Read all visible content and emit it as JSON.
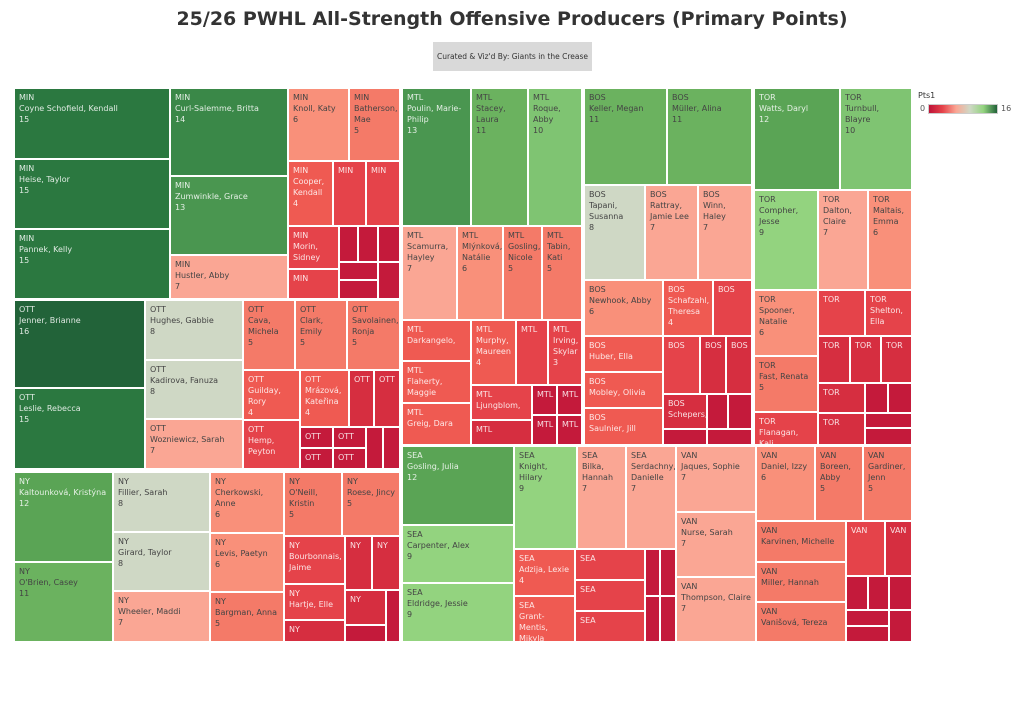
{
  "title": "25/26 PWHL All-Strength Offensive Producers (Primary Points)",
  "subtitle": "Curated & Viz'd By: Giants in the Crease",
  "legend": {
    "title": "Pts1",
    "min_label": "0",
    "max_label": "16",
    "colors": [
      "#be1238",
      "#e5434a",
      "#faa694",
      "#cfd8c5",
      "#93d37f",
      "#216238"
    ]
  },
  "chart_data": {
    "type": "treemap",
    "title": "25/26 PWHL All-Strength Offensive Producers (Primary Points)",
    "measure": "Pts1",
    "color_range": [
      0,
      16
    ],
    "teams": [
      {
        "code": "MIN",
        "players": [
          {
            "team_label": "MIN",
            "name": "Coyne Schofield, Kendall",
            "pts": 15,
            "pts_label": "15"
          },
          {
            "team_label": "MIN",
            "name": "Heise, Taylor",
            "pts": 15,
            "pts_label": "15"
          },
          {
            "team_label": "MIN",
            "name": "Pannek, Kelly",
            "pts": 15,
            "pts_label": "15"
          },
          {
            "team_label": "MIN",
            "name": "Curl-Salemme, Britta",
            "pts": 14,
            "pts_label": "14"
          },
          {
            "team_label": "MIN",
            "name": "Zumwinkle, Grace",
            "pts": 13,
            "pts_label": "13"
          },
          {
            "team_label": "MIN",
            "name": "Hustler, Abby",
            "pts": 7,
            "pts_label": "7"
          },
          {
            "team_label": "MIN",
            "name": "Knoll, Katy",
            "pts": 6,
            "pts_label": "6"
          },
          {
            "team_label": "MIN",
            "name": "Batherson, Mae",
            "pts": 5,
            "pts_label": "5"
          },
          {
            "team_label": "MIN",
            "name": "Cooper, Kendall",
            "pts": 4,
            "pts_label": "4"
          },
          {
            "team_label": "MIN",
            "pts": 3
          },
          {
            "team_label": "MIN",
            "pts": 3
          },
          {
            "team_label": "MIN",
            "name": "Morin, Sidney",
            "pts": 3
          },
          {
            "team_label": "MIN",
            "pts": 3
          },
          {
            "pts": 1
          },
          {
            "pts": 1
          },
          {
            "pts": 1
          },
          {
            "pts": 1
          },
          {
            "pts": 1
          },
          {
            "pts": 1
          }
        ]
      },
      {
        "code": "OTT",
        "players": [
          {
            "team_label": "OTT",
            "name": "Jenner, Brianne",
            "pts": 16,
            "pts_label": "16"
          },
          {
            "team_label": "OTT",
            "name": "Leslie, Rebecca",
            "pts": 15,
            "pts_label": "15"
          },
          {
            "team_label": "OTT",
            "name": "Hughes, Gabbie",
            "pts": 8,
            "pts_label": "8"
          },
          {
            "team_label": "OTT",
            "name": "Kadirova, Fanuza",
            "pts": 8,
            "pts_label": "8"
          },
          {
            "team_label": "OTT",
            "name": "Wozniewicz, Sarah",
            "pts": 7,
            "pts_label": "7"
          },
          {
            "team_label": "OTT",
            "name": "Cava, Michela",
            "pts": 5,
            "pts_label": "5"
          },
          {
            "team_label": "OTT",
            "name": "Clark, Emily",
            "pts": 5,
            "pts_label": "5"
          },
          {
            "team_label": "OTT",
            "name": "Savolainen, Ronja",
            "pts": 5,
            "pts_label": "5"
          },
          {
            "team_label": "OTT",
            "name": "Guilday, Rory",
            "pts": 4,
            "pts_label": "4"
          },
          {
            "team_label": "OTT",
            "name": "Mrázová, Kateřina",
            "pts": 4,
            "pts_label": "4"
          },
          {
            "team_label": "OTT",
            "pts": 2
          },
          {
            "team_label": "OTT",
            "pts": 2
          },
          {
            "team_label": "OTT",
            "name": "Hemp, Peyton",
            "pts": 3
          },
          {
            "team_label": "OTT",
            "pts": 1
          },
          {
            "team_label": "OTT",
            "pts": 1
          },
          {
            "team_label": "OTT",
            "pts": 1
          },
          {
            "team_label": "OTT",
            "pts": 1
          },
          {
            "pts": 1
          },
          {
            "pts": 1
          }
        ]
      },
      {
        "code": "NY",
        "players": [
          {
            "team_label": "NY",
            "name": "Kaltounková, Kristýna",
            "pts": 12,
            "pts_label": "12"
          },
          {
            "team_label": "NY",
            "name": "O'Brien, Casey",
            "pts": 11,
            "pts_label": "11"
          },
          {
            "team_label": "NY",
            "name": "Fillier, Sarah",
            "pts": 8,
            "pts_label": "8"
          },
          {
            "team_label": "NY",
            "name": "Girard, Taylor",
            "pts": 8,
            "pts_label": "8"
          },
          {
            "team_label": "NY",
            "name": "Wheeler, Maddi",
            "pts": 7,
            "pts_label": "7"
          },
          {
            "team_label": "NY",
            "name": "Cherkowski, Anne",
            "pts": 6,
            "pts_label": "6"
          },
          {
            "team_label": "NY",
            "name": "Levis, Paetyn",
            "pts": 6,
            "pts_label": "6"
          },
          {
            "team_label": "NY",
            "name": "Bargman, Anna",
            "pts": 5,
            "pts_label": "5"
          },
          {
            "team_label": "NY",
            "name": "O'Neill, Kristin",
            "pts": 5,
            "pts_label": "5"
          },
          {
            "team_label": "NY",
            "name": "Roese, Jincy",
            "pts": 5,
            "pts_label": "5"
          },
          {
            "team_label": "NY",
            "name": "Bourbonnais, Jaime",
            "pts": 3
          },
          {
            "team_label": "NY",
            "pts": 2
          },
          {
            "team_label": "NY",
            "pts": 2
          },
          {
            "team_label": "NY",
            "name": "Hartje, Elle",
            "pts": 3
          },
          {
            "team_label": "NY",
            "pts": 2
          },
          {
            "team_label": "NY",
            "pts": 2
          },
          {
            "pts": 1
          },
          {
            "pts": 1
          }
        ]
      },
      {
        "code": "MTL",
        "players": [
          {
            "team_label": "MTL",
            "name": "Poulin, Marie-Philip",
            "pts": 13,
            "pts_label": "13"
          },
          {
            "team_label": "MTL",
            "name": "Stacey, Laura",
            "pts": 11,
            "pts_label": "11"
          },
          {
            "team_label": "MTL",
            "name": "Roque, Abby",
            "pts": 10,
            "pts_label": "10"
          },
          {
            "team_label": "MTL",
            "name": "Scamurra, Hayley",
            "pts": 7,
            "pts_label": "7"
          },
          {
            "team_label": "MTL",
            "name": "Mlýnková, Natálie",
            "pts": 6,
            "pts_label": "6"
          },
          {
            "team_label": "MTL",
            "name": "Gosling, Nicole",
            "pts": 5,
            "pts_label": "5"
          },
          {
            "team_label": "MTL",
            "name": "Tabin, Kati",
            "pts": 5,
            "pts_label": "5"
          },
          {
            "team_label": "MTL",
            "name": "Darkangelo,",
            "pts": 4
          },
          {
            "team_label": "MTL",
            "name": "Flaherty, Maggie",
            "pts": 4
          },
          {
            "team_label": "MTL",
            "name": "Greig, Dara",
            "pts": 4
          },
          {
            "team_label": "MTL",
            "name": "Murphy, Maureen",
            "pts": 4,
            "pts_label": "4"
          },
          {
            "team_label": "MTL",
            "pts": 3
          },
          {
            "team_label": "MTL",
            "name": "Irving, Skylar",
            "pts": 3,
            "pts_label": "3"
          },
          {
            "team_label": "MTL",
            "name": "Ljungblom,",
            "pts": 3
          },
          {
            "team_label": "MTL",
            "pts": 2
          },
          {
            "team_label": "MTL",
            "pts": 1
          },
          {
            "team_label": "MTL",
            "pts": 1
          },
          {
            "team_label": "MTL",
            "pts": 1
          },
          {
            "team_label": "MTL",
            "pts": 1
          }
        ]
      },
      {
        "code": "BOS",
        "players": [
          {
            "team_label": "BOS",
            "name": "Keller, Megan",
            "pts": 11,
            "pts_label": "11"
          },
          {
            "team_label": "BOS",
            "name": "Müller, Alina",
            "pts": 11,
            "pts_label": "11"
          },
          {
            "team_label": "BOS",
            "name": "Tapani, Susanna",
            "pts": 8,
            "pts_label": "8"
          },
          {
            "team_label": "BOS",
            "name": "Rattray, Jamie Lee",
            "pts": 7,
            "pts_label": "7"
          },
          {
            "team_label": "BOS",
            "name": "Winn, Haley",
            "pts": 7,
            "pts_label": "7"
          },
          {
            "team_label": "BOS",
            "name": "Newhook, Abby",
            "pts": 6,
            "pts_label": "6"
          },
          {
            "team_label": "BOS",
            "name": "Huber, Ella",
            "pts": 4
          },
          {
            "team_label": "BOS",
            "name": "Mobley, Olivia",
            "pts": 4
          },
          {
            "team_label": "BOS",
            "name": "Saulnier, Jill",
            "pts": 4
          },
          {
            "team_label": "BOS",
            "name": "Schafzahl, Theresa",
            "pts": 4,
            "pts_label": "4"
          },
          {
            "team_label": "BOS",
            "pts": 3
          },
          {
            "team_label": "BOS",
            "pts": 3
          },
          {
            "team_label": "BOS",
            "pts": 2
          },
          {
            "team_label": "BOS",
            "pts": 2
          },
          {
            "team_label": "BOS",
            "name": "Schepers,",
            "pts": 2
          },
          {
            "pts": 1
          },
          {
            "pts": 1
          },
          {
            "pts": 1
          },
          {
            "pts": 1
          }
        ]
      },
      {
        "code": "TOR",
        "players": [
          {
            "team_label": "TOR",
            "name": "Watts, Daryl",
            "pts": 12,
            "pts_label": "12"
          },
          {
            "team_label": "TOR",
            "name": "Turnbull, Blayre",
            "pts": 10,
            "pts_label": "10"
          },
          {
            "team_label": "TOR",
            "name": "Compher, Jesse",
            "pts": 9,
            "pts_label": "9"
          },
          {
            "team_label": "TOR",
            "name": "Dalton, Claire",
            "pts": 7,
            "pts_label": "7"
          },
          {
            "team_label": "TOR",
            "name": "Maltais, Emma",
            "pts": 6,
            "pts_label": "6"
          },
          {
            "team_label": "TOR",
            "name": "Spooner, Natalie",
            "pts": 6,
            "pts_label": "6"
          },
          {
            "team_label": "TOR",
            "name": "Fast, Renata",
            "pts": 5,
            "pts_label": "5"
          },
          {
            "team_label": "TOR",
            "name": "Flanagan, Kali",
            "pts": 3
          },
          {
            "team_label": "TOR",
            "pts": 3
          },
          {
            "team_label": "TOR",
            "name": "Shelton, Ella",
            "pts": 3
          },
          {
            "team_label": "TOR",
            "pts": 2
          },
          {
            "team_label": "TOR",
            "pts": 2
          },
          {
            "team_label": "TOR",
            "pts": 2
          },
          {
            "team_label": "TOR",
            "pts": 2
          },
          {
            "pts": 1
          },
          {
            "pts": 1
          },
          {
            "team_label": "TOR",
            "pts": 2
          },
          {
            "pts": 1
          },
          {
            "pts": 1
          }
        ]
      },
      {
        "code": "SEA",
        "players": [
          {
            "team_label": "SEA",
            "name": "Gosling, Julia",
            "pts": 12,
            "pts_label": "12"
          },
          {
            "team_label": "SEA",
            "name": "Carpenter, Alex",
            "pts": 9,
            "pts_label": "9"
          },
          {
            "team_label": "SEA",
            "name": "Eldridge, Jessie",
            "pts": 9,
            "pts_label": "9"
          },
          {
            "team_label": "SEA",
            "name": "Knight, Hilary",
            "pts": 9,
            "pts_label": "9"
          },
          {
            "team_label": "SEA",
            "name": "Bilka, Hannah",
            "pts": 7,
            "pts_label": "7"
          },
          {
            "team_label": "SEA",
            "name": "Serdachny, Danielle",
            "pts": 7,
            "pts_label": "7"
          },
          {
            "team_label": "SEA",
            "name": "Adzija, Lexie",
            "pts": 4,
            "pts_label": "4"
          },
          {
            "team_label": "SEA",
            "name": "Grant-Mentis, Mikyla",
            "pts": 4
          },
          {
            "team_label": "SEA",
            "pts": 3
          },
          {
            "team_label": "SEA",
            "pts": 3
          },
          {
            "team_label": "SEA",
            "pts": 3
          },
          {
            "pts": 1
          },
          {
            "pts": 1
          },
          {
            "pts": 1
          },
          {
            "pts": 1
          }
        ]
      },
      {
        "code": "VAN",
        "players": [
          {
            "team_label": "VAN",
            "name": "Jaques, Sophie",
            "pts": 7,
            "pts_label": "7"
          },
          {
            "team_label": "VAN",
            "name": "Nurse, Sarah",
            "pts": 7,
            "pts_label": "7"
          },
          {
            "team_label": "VAN",
            "name": "Thompson, Claire",
            "pts": 7,
            "pts_label": "7"
          },
          {
            "team_label": "VAN",
            "name": "Daniel, Izzy",
            "pts": 6,
            "pts_label": "6"
          },
          {
            "team_label": "VAN",
            "name": "Boreen, Abby",
            "pts": 5,
            "pts_label": "5"
          },
          {
            "team_label": "VAN",
            "name": "Gardiner, Jenn",
            "pts": 5,
            "pts_label": "5"
          },
          {
            "team_label": "VAN",
            "name": "Karvinen, Michelle",
            "pts": 5
          },
          {
            "team_label": "VAN",
            "name": "Miller, Hannah",
            "pts": 5
          },
          {
            "team_label": "VAN",
            "name": "Vanišová, Tereza",
            "pts": 5
          },
          {
            "team_label": "VAN",
            "pts": 3
          },
          {
            "team_label": "VAN",
            "pts": 2
          },
          {
            "pts": 1
          },
          {
            "pts": 1
          },
          {
            "pts": 1
          },
          {
            "pts": 1
          },
          {
            "pts": 1
          },
          {
            "pts": 1
          }
        ]
      }
    ]
  }
}
